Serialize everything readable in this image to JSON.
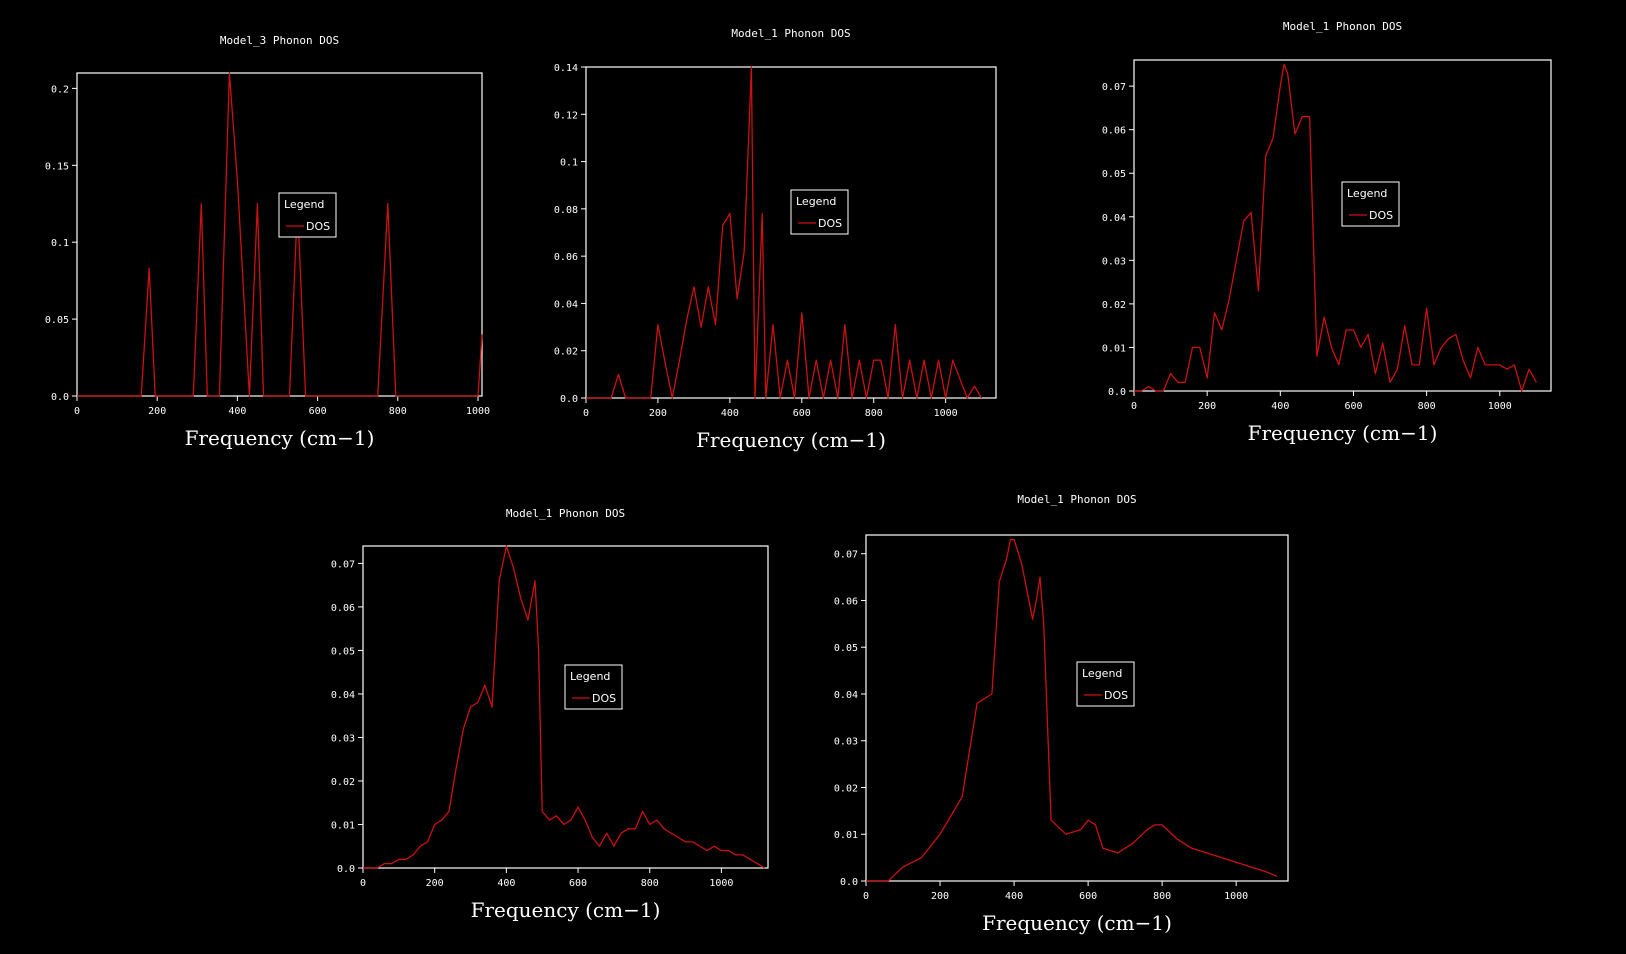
{
  "colors": {
    "background": "#000000",
    "axes": "#ffffff",
    "series": "#cc1111"
  },
  "chart_data": [
    {
      "type": "line",
      "title": "Model_3 Phonon DOS",
      "xlabel": "Frequency (cm−1)",
      "xlim": [
        0,
        1010
      ],
      "ylim": [
        0,
        0.21
      ],
      "xticks": [
        0,
        200,
        400,
        600,
        800,
        1000
      ],
      "xtick_labels": [
        "0",
        "200",
        "400",
        "600",
        "800",
        "1000"
      ],
      "yticks": [
        0,
        0.05,
        0.1,
        0.15,
        0.2
      ],
      "ytick_labels": [
        "0.0",
        "0.05",
        "0.1",
        "0.15",
        "0.2"
      ],
      "legend": {
        "title": "Legend",
        "position": "center"
      },
      "series": [
        {
          "name": "DOS",
          "x": [
            0,
            160,
            180,
            195,
            290,
            310,
            325,
            355,
            380,
            400,
            430,
            450,
            465,
            530,
            550,
            570,
            750,
            775,
            795,
            1000,
            1010
          ],
          "y": [
            0,
            0,
            0.083,
            0,
            0,
            0.125,
            0,
            0,
            0.21,
            0.14,
            0,
            0.125,
            0,
            0,
            0.125,
            0,
            0,
            0.125,
            0,
            0,
            0.04
          ]
        }
      ]
    },
    {
      "type": "line",
      "title": "Model_1 Phonon DOS",
      "xlabel": "Frequency (cm−1)",
      "xlim": [
        0,
        1140
      ],
      "ylim": [
        0,
        0.14
      ],
      "xticks": [
        0,
        200,
        400,
        600,
        800,
        1000
      ],
      "xtick_labels": [
        "0",
        "200",
        "400",
        "600",
        "800",
        "1000"
      ],
      "yticks": [
        0,
        0.02,
        0.04,
        0.06,
        0.08,
        0.1,
        0.12,
        0.14
      ],
      "ytick_labels": [
        "0.0",
        "0.02",
        "0.04",
        "0.06",
        "0.08",
        "0.1",
        "0.12",
        "0.14"
      ],
      "legend": {
        "title": "Legend",
        "position": "center-right"
      },
      "series": [
        {
          "name": "DOS",
          "x": [
            0,
            70,
            90,
            110,
            180,
            200,
            220,
            240,
            260,
            280,
            300,
            320,
            340,
            360,
            380,
            400,
            420,
            440,
            460,
            470,
            490,
            500,
            520,
            540,
            560,
            580,
            600,
            620,
            640,
            660,
            680,
            700,
            720,
            740,
            760,
            780,
            800,
            820,
            840,
            860,
            880,
            900,
            920,
            940,
            960,
            980,
            1000,
            1020,
            1060,
            1080,
            1100
          ],
          "y": [
            0,
            0,
            0.01,
            0,
            0,
            0.031,
            0.015,
            0,
            0.016,
            0.033,
            0.047,
            0.03,
            0.047,
            0.031,
            0.073,
            0.078,
            0.042,
            0.062,
            0.14,
            0,
            0.078,
            0,
            0.031,
            0,
            0.016,
            0,
            0.036,
            0,
            0.016,
            0,
            0.016,
            0,
            0.031,
            0,
            0.016,
            0,
            0.016,
            0.016,
            0,
            0.031,
            0,
            0.016,
            0,
            0.016,
            0,
            0.016,
            0,
            0.016,
            0,
            0.005,
            0
          ]
        }
      ]
    },
    {
      "type": "line",
      "title": "Model_1 Phonon DOS",
      "xlabel": "Frequency (cm−1)",
      "xlim": [
        0,
        1140
      ],
      "ylim": [
        0,
        0.076
      ],
      "xticks": [
        0,
        200,
        400,
        600,
        800,
        1000
      ],
      "xtick_labels": [
        "0",
        "200",
        "400",
        "600",
        "800",
        "1000"
      ],
      "yticks": [
        0,
        0.01,
        0.02,
        0.03,
        0.04,
        0.05,
        0.06,
        0.07
      ],
      "ytick_labels": [
        "0.0",
        "0.01",
        "0.02",
        "0.03",
        "0.04",
        "0.05",
        "0.06",
        "0.07"
      ],
      "legend": {
        "title": "Legend",
        "position": "center-right"
      },
      "series": [
        {
          "name": "DOS",
          "x": [
            0,
            20,
            40,
            60,
            80,
            100,
            120,
            140,
            160,
            180,
            200,
            220,
            240,
            260,
            280,
            300,
            320,
            340,
            360,
            380,
            400,
            410,
            420,
            440,
            460,
            480,
            500,
            520,
            540,
            560,
            580,
            600,
            620,
            640,
            660,
            680,
            700,
            720,
            740,
            760,
            780,
            800,
            820,
            840,
            860,
            880,
            900,
            920,
            940,
            960,
            980,
            1000,
            1020,
            1040,
            1060,
            1080,
            1100
          ],
          "y": [
            0,
            0,
            0.001,
            0,
            0,
            0.004,
            0.002,
            0.002,
            0.01,
            0.01,
            0.003,
            0.018,
            0.014,
            0.021,
            0.03,
            0.039,
            0.041,
            0.023,
            0.054,
            0.058,
            0.07,
            0.075,
            0.073,
            0.059,
            0.063,
            0.063,
            0.008,
            0.017,
            0.01,
            0.006,
            0.014,
            0.014,
            0.01,
            0.013,
            0.004,
            0.011,
            0.002,
            0.005,
            0.015,
            0.006,
            0.006,
            0.019,
            0.006,
            0.01,
            0.012,
            0.013,
            0.007,
            0.003,
            0.01,
            0.006,
            0.006,
            0.006,
            0.005,
            0.006,
            0.0,
            0.005,
            0.002
          ]
        }
      ]
    },
    {
      "type": "line",
      "title": "Model_1 Phonon DOS",
      "xlabel": "Frequency (cm−1)",
      "xlim": [
        0,
        1130
      ],
      "ylim": [
        0,
        0.074
      ],
      "xticks": [
        0,
        200,
        400,
        600,
        800,
        1000
      ],
      "xtick_labels": [
        "0",
        "200",
        "400",
        "600",
        "800",
        "1000"
      ],
      "yticks": [
        0,
        0.01,
        0.02,
        0.03,
        0.04,
        0.05,
        0.06,
        0.07
      ],
      "ytick_labels": [
        "0.0",
        "0.01",
        "0.02",
        "0.03",
        "0.04",
        "0.05",
        "0.06",
        "0.07"
      ],
      "legend": {
        "title": "Legend",
        "position": "center-right"
      },
      "series": [
        {
          "name": "DOS",
          "x": [
            0,
            40,
            60,
            80,
            100,
            120,
            140,
            160,
            180,
            200,
            220,
            240,
            260,
            280,
            300,
            320,
            340,
            360,
            380,
            400,
            420,
            440,
            460,
            480,
            490,
            500,
            520,
            540,
            560,
            580,
            600,
            620,
            640,
            660,
            680,
            700,
            720,
            740,
            760,
            780,
            800,
            820,
            840,
            860,
            880,
            900,
            920,
            940,
            960,
            980,
            1000,
            1020,
            1040,
            1060,
            1080,
            1100,
            1120
          ],
          "y": [
            0,
            0,
            0.001,
            0.001,
            0.002,
            0.002,
            0.003,
            0.005,
            0.006,
            0.01,
            0.011,
            0.013,
            0.023,
            0.032,
            0.037,
            0.038,
            0.042,
            0.037,
            0.066,
            0.074,
            0.069,
            0.062,
            0.057,
            0.066,
            0.05,
            0.013,
            0.011,
            0.012,
            0.01,
            0.011,
            0.014,
            0.011,
            0.007,
            0.005,
            0.008,
            0.005,
            0.008,
            0.009,
            0.009,
            0.013,
            0.01,
            0.011,
            0.009,
            0.008,
            0.007,
            0.006,
            0.006,
            0.005,
            0.004,
            0.005,
            0.004,
            0.004,
            0.003,
            0.003,
            0.002,
            0.001,
            0.0
          ]
        }
      ]
    },
    {
      "type": "line",
      "title": "Model_1 Phonon DOS",
      "xlabel": "Frequency (cm−1)",
      "xlim": [
        0,
        1140
      ],
      "ylim": [
        0,
        0.074
      ],
      "xticks": [
        0,
        200,
        400,
        600,
        800,
        1000
      ],
      "xtick_labels": [
        "0",
        "200",
        "400",
        "600",
        "800",
        "1000"
      ],
      "yticks": [
        0,
        0.01,
        0.02,
        0.03,
        0.04,
        0.05,
        0.06,
        0.07
      ],
      "ytick_labels": [
        "0.0",
        "0.01",
        "0.02",
        "0.03",
        "0.04",
        "0.05",
        "0.06",
        "0.07"
      ],
      "legend": {
        "title": "Legend",
        "position": "center-right"
      },
      "series": [
        {
          "name": "DOS",
          "x": [
            0,
            60,
            100,
            150,
            200,
            230,
            260,
            280,
            300,
            320,
            340,
            360,
            380,
            390,
            400,
            420,
            440,
            450,
            460,
            470,
            480,
            500,
            540,
            580,
            600,
            620,
            640,
            680,
            720,
            760,
            780,
            800,
            840,
            880,
            920,
            960,
            1000,
            1040,
            1080,
            1110
          ],
          "y": [
            0,
            0,
            0.003,
            0.005,
            0.01,
            0.014,
            0.018,
            0.028,
            0.038,
            0.039,
            0.04,
            0.064,
            0.069,
            0.073,
            0.073,
            0.068,
            0.06,
            0.056,
            0.06,
            0.065,
            0.055,
            0.013,
            0.01,
            0.011,
            0.013,
            0.012,
            0.007,
            0.006,
            0.008,
            0.011,
            0.012,
            0.012,
            0.009,
            0.007,
            0.006,
            0.005,
            0.004,
            0.003,
            0.002,
            0.001
          ]
        }
      ]
    }
  ]
}
